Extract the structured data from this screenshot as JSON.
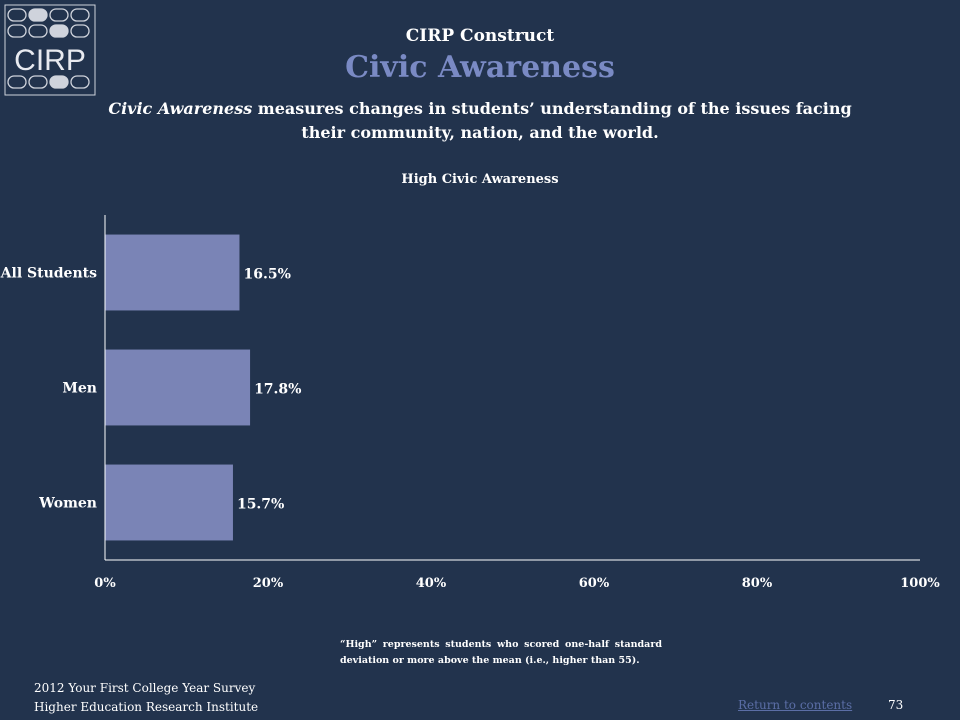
{
  "logo": {
    "text": "CIRP"
  },
  "header": {
    "kicker": "CIRP Construct",
    "title": "Civic Awareness",
    "title_color": "#7a8ac4"
  },
  "description": {
    "em": "Civic Awareness",
    "rest_line1": " measures changes in students’ understanding of the issues facing",
    "line2": "their community, nation, and the world."
  },
  "chart_data": {
    "type": "bar",
    "orientation": "horizontal",
    "title": "High Civic Awareness",
    "categories": [
      "All Students",
      "Men",
      "Women"
    ],
    "values": [
      16.5,
      17.8,
      15.7
    ],
    "value_labels": [
      "16.5%",
      "17.8%",
      "15.7%"
    ],
    "xlim": [
      0,
      100
    ],
    "xticks": [
      "0%",
      "20%",
      "40%",
      "60%",
      "80%",
      "100%"
    ],
    "xlabel": "",
    "ylabel": "",
    "grid": false,
    "bar_color": "#7a84b6",
    "axis_color": "#ffffff"
  },
  "footnote": "“High” represents students who scored one-half standard deviation or more above the mean (i.e., higher than 55).",
  "footer": {
    "line1": "2012 Your First College Year Survey",
    "line2": "Higher Education Research Institute",
    "return_link": "Return to contents",
    "page_number": "73"
  }
}
